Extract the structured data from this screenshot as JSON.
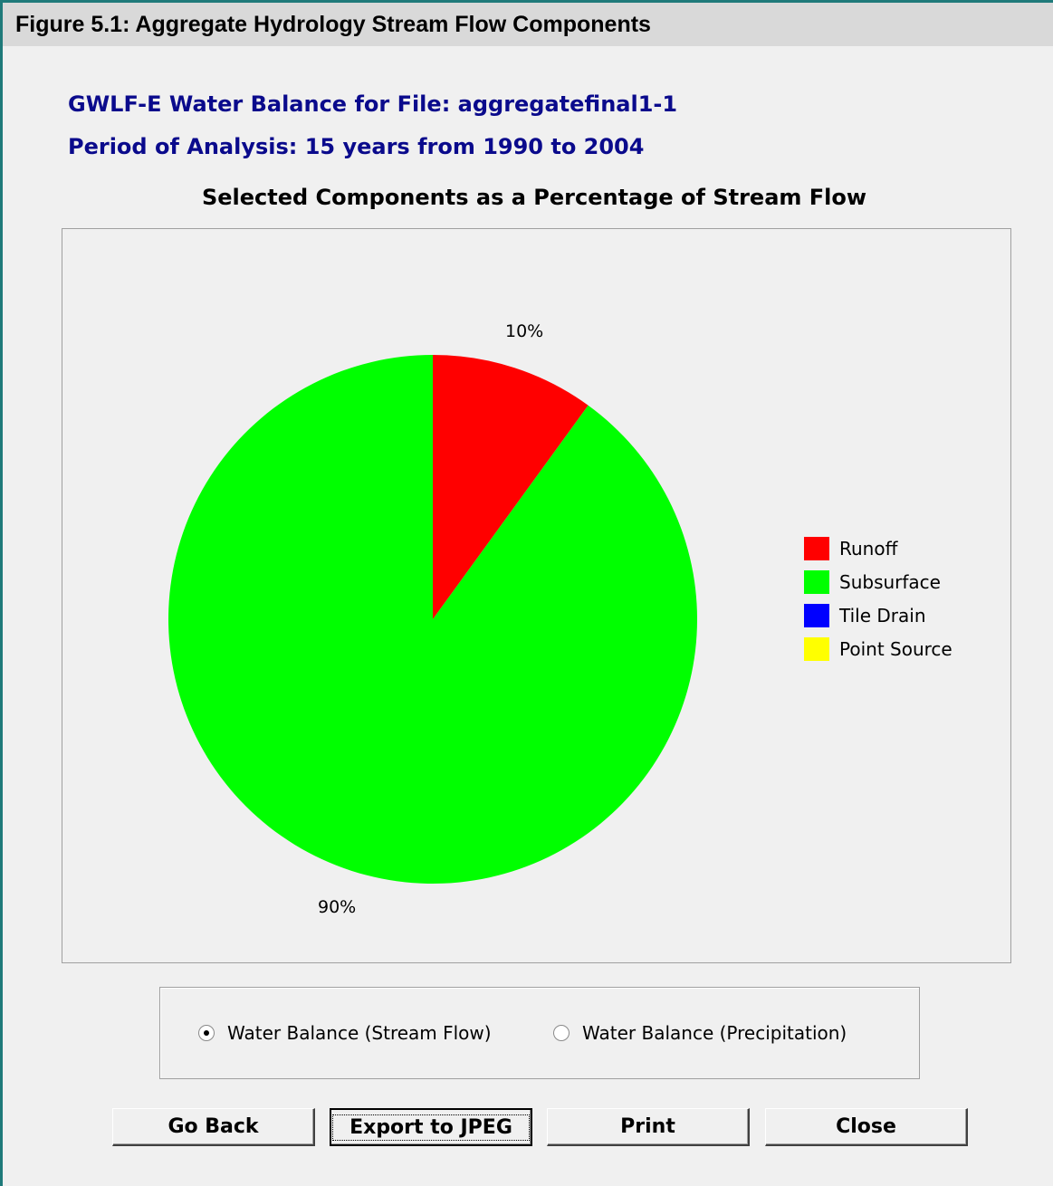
{
  "figure_header": "Figure 5.1: Aggregate Hydrology Stream Flow Components",
  "window": {
    "title_line1": "GWLF-E Water Balance for File: aggregatefinal1-1",
    "title_line2": "Period of Analysis:  15 years from 1990 to 2004"
  },
  "chart_data": {
    "type": "pie",
    "title": "Selected Components as a Percentage of Stream Flow",
    "categories": [
      "Runoff",
      "Subsurface",
      "Tile Drain",
      "Point Source"
    ],
    "values": [
      10,
      90,
      0,
      0
    ],
    "labels": [
      "10%",
      "90%"
    ],
    "colors": [
      "#ff0000",
      "#00ff00",
      "#0000ff",
      "#ffff00"
    ],
    "legend_position": "right"
  },
  "radio_options": [
    {
      "label": "Water Balance (Stream Flow)",
      "selected": true
    },
    {
      "label": "Water Balance (Precipitation)",
      "selected": false
    }
  ],
  "buttons": {
    "go_back": "Go Back",
    "export": "Export to JPEG",
    "print": "Print",
    "close": "Close"
  }
}
